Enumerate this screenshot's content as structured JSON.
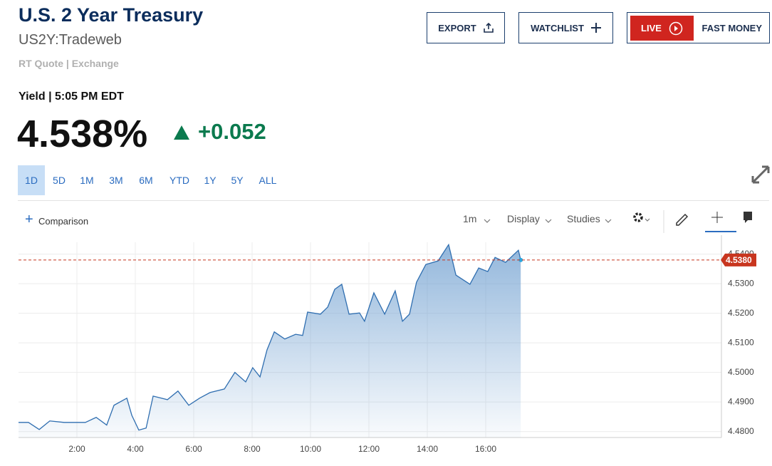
{
  "header": {
    "title": "U.S. 2 Year Treasury",
    "symbol": "US2Y:Tradeweb",
    "source": "RT Quote | Exchange",
    "buttons": {
      "export": "EXPORT",
      "watchlist": "WATCHLIST",
      "live": "LIVE",
      "fast_money": "FAST MONEY"
    }
  },
  "quote": {
    "label": "Yield | 5:05 PM EDT",
    "price": "4.538%",
    "change": "+0.052"
  },
  "ranges": [
    "1D",
    "5D",
    "1M",
    "3M",
    "6M",
    "YTD",
    "1Y",
    "5Y",
    "ALL"
  ],
  "toolbar": {
    "comparison": "Comparison",
    "interval": "1m",
    "display": "Display",
    "studies": "Studies"
  },
  "chart_data": {
    "type": "area",
    "grid": true,
    "x": [
      0,
      0.34,
      0.71,
      1.07,
      1.56,
      2.29,
      2.66,
      3.02,
      3.27,
      3.71,
      3.88,
      4.12,
      4.37,
      4.61,
      5.1,
      5.46,
      5.83,
      6.2,
      6.56,
      7.05,
      7.41,
      7.78,
      8.02,
      8.27,
      8.51,
      8.76,
      9.12,
      9.49,
      9.73,
      9.9,
      10.34,
      10.59,
      10.83,
      11.07,
      11.32,
      11.68,
      11.85,
      12.17,
      12.54,
      12.9,
      13.15,
      13.39,
      13.63,
      13.95,
      14.37,
      14.73,
      14.98,
      15.46,
      15.76,
      16.07,
      16.32,
      16.68,
      17.12,
      17.2
    ],
    "series": [
      {
        "color": "#2f6eb0",
        "values": [
          4.4831,
          4.4831,
          4.4807,
          4.4836,
          4.4831,
          4.4831,
          4.4848,
          4.4822,
          4.4889,
          4.4913,
          4.4855,
          4.4805,
          4.4812,
          4.492,
          4.4908,
          4.4937,
          4.4889,
          4.4913,
          4.4932,
          4.4944,
          4.5,
          4.4968,
          4.5016,
          4.4985,
          4.5076,
          4.5137,
          4.5113,
          4.5129,
          4.5125,
          4.5204,
          4.5197,
          4.5221,
          4.5281,
          4.5298,
          4.5197,
          4.5201,
          4.5173,
          4.5269,
          4.5197,
          4.5276,
          4.5173,
          4.5197,
          4.5305,
          4.5365,
          4.5377,
          4.5432,
          4.5329,
          4.5298,
          4.5353,
          4.5341,
          4.5389,
          4.5372,
          4.5413,
          4.538
        ]
      }
    ],
    "reference": {
      "value": 4.538,
      "label": "4.5380",
      "color": "#c8361f"
    },
    "xlim": [
      0,
      24
    ],
    "xticks": [
      {
        "value": 2,
        "label": "2:00"
      },
      {
        "value": 4,
        "label": "4:00"
      },
      {
        "value": 6,
        "label": "6:00"
      },
      {
        "value": 8,
        "label": "8:00"
      },
      {
        "value": 10,
        "label": "10:00"
      },
      {
        "value": 12,
        "label": "12:00"
      },
      {
        "value": 14,
        "label": "14:00"
      },
      {
        "value": 16,
        "label": "16:00"
      }
    ],
    "ylim": [
      4.478,
      4.544
    ],
    "yticks": [
      {
        "value": 4.48,
        "label": "4.4800"
      },
      {
        "value": 4.49,
        "label": "4.4900"
      },
      {
        "value": 4.5,
        "label": "4.5000"
      },
      {
        "value": 4.51,
        "label": "4.5100"
      },
      {
        "value": 4.52,
        "label": "4.5200"
      },
      {
        "value": 4.53,
        "label": "4.5300"
      },
      {
        "value": 4.54,
        "label": "4.5400"
      }
    ]
  }
}
